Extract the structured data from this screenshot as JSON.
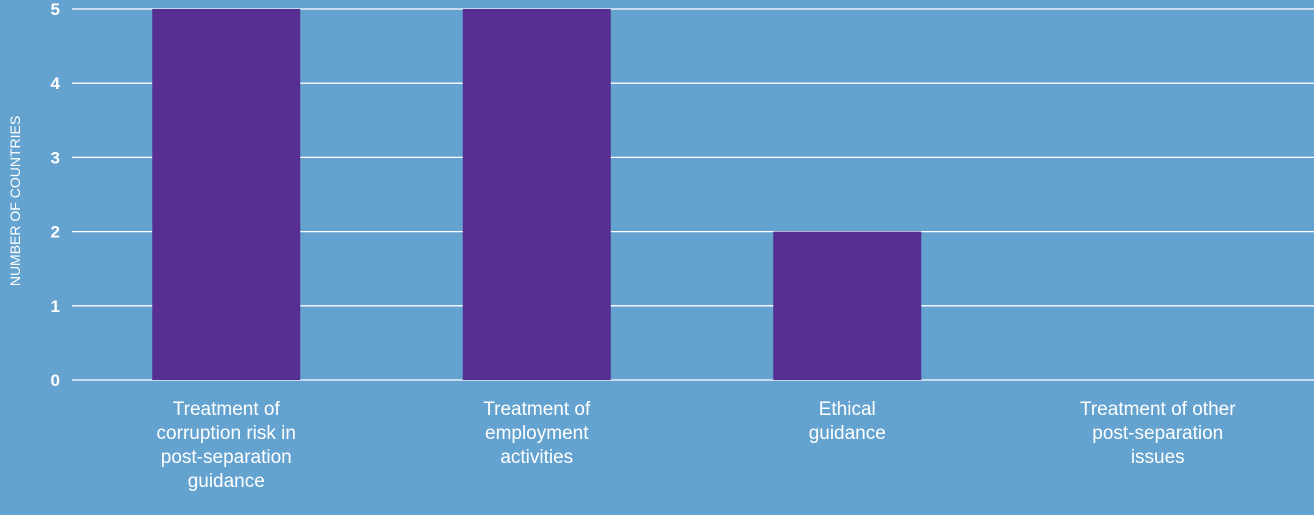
{
  "colors": {
    "background": "#64a3d0",
    "bar": "#572f93",
    "gridline": "#ffffff",
    "text": "#ffffff"
  },
  "chart_data": {
    "type": "bar",
    "title": "",
    "xlabel": "",
    "ylabel": "NUMBER OF COUNTRIES",
    "ylim": [
      0,
      5
    ],
    "yticks": [
      0,
      1,
      2,
      3,
      4,
      5
    ],
    "grid": true,
    "categories": [
      "Treatment of corruption risk in post-separation guidance",
      "Treatment of employment activities",
      "Ethical guidance",
      "Treatment of other post-separation issues"
    ],
    "category_lines": [
      [
        "Treatment of",
        "corruption risk in",
        "post-separation",
        "guidance"
      ],
      [
        "Treatment of",
        "employment",
        "activities"
      ],
      [
        "Ethical",
        "guidance"
      ],
      [
        "Treatment of other",
        "post-separation",
        "issues"
      ]
    ],
    "values": [
      5,
      5,
      2,
      0
    ]
  }
}
